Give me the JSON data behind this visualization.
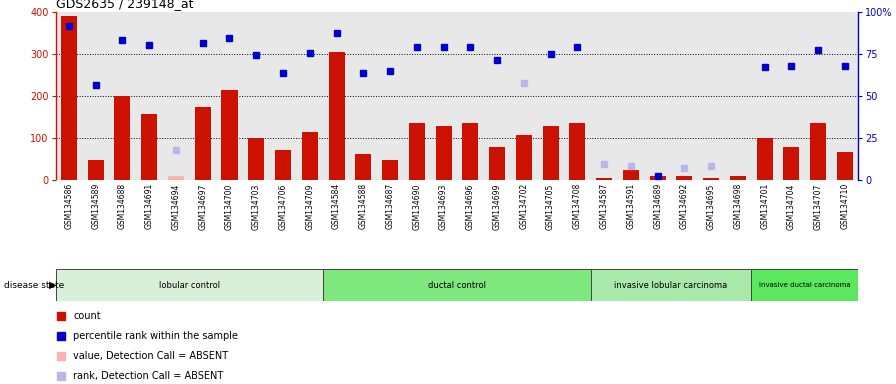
{
  "title": "GDS2635 / 239148_at",
  "samples": [
    "GSM134586",
    "GSM134589",
    "GSM134688",
    "GSM134691",
    "GSM134694",
    "GSM134697",
    "GSM134700",
    "GSM134703",
    "GSM134706",
    "GSM134709",
    "GSM134584",
    "GSM134588",
    "GSM134687",
    "GSM134690",
    "GSM134693",
    "GSM134696",
    "GSM134699",
    "GSM134702",
    "GSM134705",
    "GSM134708",
    "GSM134587",
    "GSM134591",
    "GSM134689",
    "GSM134692",
    "GSM134695",
    "GSM134698",
    "GSM134701",
    "GSM134704",
    "GSM134707",
    "GSM134710"
  ],
  "counts_present": [
    390,
    48,
    200,
    158,
    null,
    175,
    215,
    100,
    72,
    115,
    305,
    63,
    48,
    135,
    130,
    135,
    80,
    108,
    130,
    135,
    5,
    25,
    10,
    10,
    5,
    10,
    100,
    80,
    135,
    68
  ],
  "counts_absent": [
    null,
    null,
    null,
    null,
    10,
    null,
    null,
    null,
    null,
    null,
    null,
    null,
    null,
    null,
    null,
    null,
    null,
    null,
    null,
    null,
    null,
    null,
    null,
    null,
    null,
    null,
    null,
    null,
    null,
    null
  ],
  "ranks_present": [
    365,
    225,
    332,
    320,
    null,
    325,
    338,
    298,
    254,
    302,
    350,
    255,
    260,
    316,
    316,
    315,
    285,
    null,
    300,
    315,
    null,
    null,
    10,
    null,
    null,
    null,
    268,
    272,
    310,
    270
  ],
  "ranks_absent": [
    null,
    null,
    null,
    null,
    73,
    null,
    null,
    null,
    null,
    null,
    null,
    null,
    null,
    null,
    null,
    null,
    null,
    230,
    null,
    null,
    40,
    35,
    null,
    30,
    35,
    null,
    null,
    null,
    null,
    null
  ],
  "groups": [
    {
      "label": "lobular control",
      "start": 0,
      "end": 10
    },
    {
      "label": "ductal control",
      "start": 10,
      "end": 20
    },
    {
      "label": "invasive lobular carcinoma",
      "start": 20,
      "end": 26
    },
    {
      "label": "invasive ductal carcinoma",
      "start": 26,
      "end": 30
    }
  ],
  "group_colors": [
    "#d8efd8",
    "#7ee87e",
    "#a8e8a8",
    "#5ce85c"
  ],
  "ylim_left": [
    0,
    400
  ],
  "ylim_right": [
    0,
    100
  ],
  "bar_color_present": "#cc1100",
  "bar_color_absent": "#ffb0b0",
  "dot_color_present": "#0000cc",
  "dot_color_absent": "#b8b8e8",
  "plot_bg_color": "#e8e8e8",
  "xtick_bg_color": "#d0d0d0",
  "yticks_left": [
    0,
    100,
    200,
    300,
    400
  ],
  "yticks_right": [
    0,
    25,
    50,
    75,
    100
  ],
  "grid_lines": [
    100,
    200,
    300
  ]
}
